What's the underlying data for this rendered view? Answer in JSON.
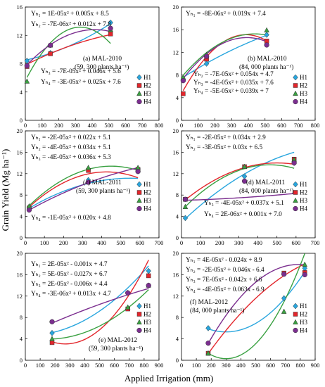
{
  "figure": {
    "ylabel": "Grain Yield (Mg ha⁻¹)",
    "xlabel": "Applied Irrigation (mm)"
  },
  "colors": {
    "H1": "#29a6de",
    "H2": "#e3262c",
    "H3": "#3aa142",
    "H4": "#7b2e8f"
  },
  "chart_data": [
    {
      "type": "scatter",
      "panel": "(a) MAL-2010",
      "subtitle": "(59, 300 plants ha⁻¹)",
      "xlim": [
        0,
        800
      ],
      "ylim": [
        0,
        16
      ],
      "xticks": [
        0,
        100,
        200,
        300,
        400,
        500,
        600,
        700,
        800
      ],
      "yticks": [
        0,
        4,
        8,
        12,
        16
      ],
      "equations": [
        "Yₕ₁ = 1E-05x² + 0.005x + 8.5",
        "Yₕ₂ = -7E-06x² + 0.012x + 7.8",
        "Yₕ₃ = -7E-05x² + 0.046x + 5.6",
        "Yₕ₄ = -3E-05x² + 0.025x + 7.6"
      ],
      "series": [
        {
          "name": "H1",
          "marker": "diamond",
          "x": [
            10,
            150,
            510
          ],
          "y": [
            8.4,
            9.5,
            13.8
          ],
          "coef": [
            1e-05,
            0.005,
            8.5
          ]
        },
        {
          "name": "H2",
          "marker": "square",
          "x": [
            10,
            150,
            510
          ],
          "y": [
            7.6,
            9.4,
            12.2
          ],
          "coef": [
            -7e-06,
            0.012,
            7.8
          ]
        },
        {
          "name": "H3",
          "marker": "triangle",
          "x": [
            10,
            150,
            510
          ],
          "y": [
            5.5,
            10.6,
            12.8
          ],
          "coef": [
            -7e-05,
            0.046,
            5.6
          ]
        },
        {
          "name": "H4",
          "marker": "circle",
          "x": [
            10,
            150,
            510
          ],
          "y": [
            7.7,
            10.6,
            13.0
          ],
          "coef": [
            -3e-05,
            0.025,
            7.6
          ]
        }
      ]
    },
    {
      "type": "scatter",
      "panel": "(b) MAL-2010",
      "subtitle": "(84, 000 plants ha⁻¹)",
      "xlim": [
        0,
        800
      ],
      "ylim": [
        0,
        20
      ],
      "xticks": [
        0,
        100,
        200,
        300,
        400,
        500,
        600,
        700,
        800
      ],
      "yticks": [
        0,
        4,
        8,
        12,
        16,
        20
      ],
      "equations": [
        "Yₕ₁ = -8E-06x² + 0.019x + 7.4",
        "Yₕ₂ = -7E-05x² + 0.054x + 4.7",
        "Yₕ₃ = -4E-05x² + 0.035x + 7.6",
        "Yₕ₄ = -5E-05x² + 0.039x + 7"
      ],
      "series": [
        {
          "name": "H1",
          "marker": "diamond",
          "x": [
            10,
            150,
            510
          ],
          "y": [
            7.2,
            10.0,
            15.1
          ],
          "coef": [
            -8e-06,
            0.019,
            7.4
          ]
        },
        {
          "name": "H2",
          "marker": "square",
          "x": [
            10,
            150,
            510
          ],
          "y": [
            4.7,
            10.8,
            14.0
          ],
          "coef": [
            -7e-05,
            0.054,
            4.7
          ]
        },
        {
          "name": "H3",
          "marker": "triangle",
          "x": [
            10,
            150,
            510
          ],
          "y": [
            7.6,
            11.6,
            15.9
          ],
          "coef": [
            -4e-05,
            0.035,
            7.6
          ]
        },
        {
          "name": "H4",
          "marker": "circle",
          "x": [
            10,
            150,
            510
          ],
          "y": [
            7.0,
            11.3,
            13.3
          ],
          "coef": [
            -5e-05,
            0.039,
            7.0
          ]
        }
      ]
    },
    {
      "type": "scatter",
      "panel": "(c) MAL-2011",
      "subtitle": "(59, 300 plants ha⁻¹)",
      "xlim": [
        0,
        700
      ],
      "ylim": [
        0,
        20
      ],
      "xticks": [
        0,
        100,
        200,
        300,
        400,
        500,
        600,
        700
      ],
      "yticks": [
        0,
        4,
        8,
        12,
        16,
        20
      ],
      "equations": [
        "Yₕ₁ = -2E-05x² + 0.022x + 5.1",
        "Yₕ₂ = -4E-05x² + 0.034x + 5.1",
        "Yₕ₃ = -4E-05x² + 0.036x + 5.3",
        "Yₕ₄ = -1E-05x² + 0.020x + 4.8"
      ],
      "series": [
        {
          "name": "H1",
          "marker": "diamond",
          "x": [
            20,
            330,
            590
          ],
          "y": [
            5.6,
            10.8,
            12.9
          ],
          "coef": [
            -2e-05,
            0.022,
            5.1
          ]
        },
        {
          "name": "H2",
          "marker": "square",
          "x": [
            20,
            330,
            590
          ],
          "y": [
            5.6,
            12.6,
            12.8
          ],
          "coef": [
            -4e-05,
            0.034,
            5.1
          ]
        },
        {
          "name": "H3",
          "marker": "triangle",
          "x": [
            20,
            330,
            590
          ],
          "y": [
            5.9,
            13.1,
            13.1
          ],
          "coef": [
            -4e-05,
            0.036,
            5.3
          ]
        },
        {
          "name": "H4",
          "marker": "circle",
          "x": [
            20,
            330,
            590
          ],
          "y": [
            5.2,
            10.4,
            12.4
          ],
          "coef": [
            -1e-05,
            0.02,
            4.8
          ]
        }
      ]
    },
    {
      "type": "scatter",
      "panel": "(d) MAL-2011",
      "subtitle": "(84, 000 plants ha⁻¹)",
      "xlim": [
        0,
        700
      ],
      "ylim": [
        0,
        20
      ],
      "xticks": [
        0,
        100,
        200,
        300,
        400,
        500,
        600,
        700
      ],
      "yticks": [
        0,
        4,
        8,
        12,
        16,
        20
      ],
      "equations": [
        "Yₕ₁ = -2E-05x² + 0.034x + 2.9",
        "Yₕ₂ = -3E-05x² + 0.03x + 6.5",
        "Yₕ₃ = -4E-05x² + 0.037x + 5.1",
        "Yₕ₄ = 2E-06x² + 0.001x + 7.0"
      ],
      "series": [
        {
          "name": "H1",
          "marker": "diamond",
          "x": [
            20,
            330,
            590
          ],
          "y": [
            3.7,
            11.5,
            14.0
          ],
          "coef": [
            -2e-05,
            0.034,
            2.9
          ]
        },
        {
          "name": "H2",
          "marker": "square",
          "x": [
            20,
            330,
            590
          ],
          "y": [
            7.2,
            13.3,
            14.7
          ],
          "coef": [
            -3e-05,
            0.03,
            6.5
          ]
        },
        {
          "name": "H3",
          "marker": "triangle",
          "x": [
            20,
            330,
            590
          ],
          "y": [
            5.8,
            13.3,
            14.6
          ],
          "coef": [
            -4e-05,
            0.037,
            5.1
          ]
        },
        {
          "name": "H4",
          "marker": "circle",
          "x": [
            20,
            330,
            590
          ],
          "y": [
            7.2,
            10.6,
            14.0
          ],
          "coef": [
            2e-06,
            0.001,
            7.0
          ]
        }
      ]
    },
    {
      "type": "scatter",
      "panel": "(e) MAL-2012",
      "subtitle": "(59, 300 plants ha⁻¹)",
      "xlim": [
        0,
        900
      ],
      "ylim": [
        0,
        20
      ],
      "xticks": [
        0,
        100,
        200,
        300,
        400,
        500,
        600,
        700,
        800,
        900
      ],
      "yticks": [
        0,
        4,
        8,
        12,
        16,
        20
      ],
      "equations": [
        "Yₕ₁ = 2E-05x² - 0.001x + 4.7",
        "Yₕ₂ = 5E-05x² - 0.027x + 6.7",
        "Yₕ₃ = 2E-05x² - 0.006x + 4.4",
        "Yₕ₄ = -3E-06x² + 0.013x + 4.7"
      ],
      "series": [
        {
          "name": "H1",
          "marker": "diamond",
          "x": [
            180,
            690,
            830
          ],
          "y": [
            5.1,
            12.6,
            16.7
          ],
          "coef": [
            2e-05,
            -0.001,
            4.7
          ]
        },
        {
          "name": "H2",
          "marker": "square",
          "x": [
            180,
            690,
            830
          ],
          "y": [
            3.3,
            9.6,
            15.8
          ],
          "coef": [
            5e-05,
            -0.027,
            6.7
          ]
        },
        {
          "name": "H3",
          "marker": "triangle",
          "x": [
            180,
            690,
            830
          ],
          "y": [
            4.0,
            9.9,
            14.0
          ],
          "coef": [
            2e-05,
            -0.006,
            4.4
          ]
        },
        {
          "name": "H4",
          "marker": "circle",
          "x": [
            180,
            690,
            830
          ],
          "y": [
            7.2,
            12.6,
            14.0
          ],
          "coef": [
            -3e-06,
            0.013,
            4.7
          ]
        }
      ]
    },
    {
      "type": "scatter",
      "panel": "(f) MAL-2012",
      "subtitle": "(84, 000 plants ha⁻¹)",
      "xlim": [
        0,
        900
      ],
      "ylim": [
        0,
        20
      ],
      "xticks": [
        0,
        100,
        200,
        300,
        400,
        500,
        600,
        700,
        800,
        900
      ],
      "yticks": [
        0,
        4,
        8,
        12,
        16,
        20
      ],
      "equations": [
        "Yₕ₁ = 4E-05x² - 0.024x + 8.9",
        "Yₕ₂ = -2E-05x² + 0.046x - 6.4",
        "Yₕ₃ = 7E-05x² - 0.042x + 6.6",
        "Yₕ₄ = -4E-05x² + 0.063x - 6.9"
      ],
      "series": [
        {
          "name": "H1",
          "marker": "diamond",
          "x": [
            180,
            690,
            830
          ],
          "y": [
            6.0,
            11.6,
            17.2
          ],
          "coef": [
            4e-05,
            -0.024,
            8.9
          ]
        },
        {
          "name": "H2",
          "marker": "square",
          "x": [
            180,
            690,
            830
          ],
          "y": [
            1.3,
            16.3,
            16.4
          ],
          "coef": [
            -2e-05,
            0.046,
            -6.4
          ]
        },
        {
          "name": "H3",
          "marker": "triangle",
          "x": [
            180,
            690,
            830
          ],
          "y": [
            1.3,
            9.1,
            17.9
          ],
          "coef": [
            7e-05,
            -0.042,
            6.6
          ]
        },
        {
          "name": "H4",
          "marker": "circle",
          "x": [
            180,
            690,
            830
          ],
          "y": [
            3.2,
            16.1,
            16.0
          ],
          "coef": [
            -4e-05,
            0.063,
            -6.9
          ]
        }
      ]
    }
  ]
}
